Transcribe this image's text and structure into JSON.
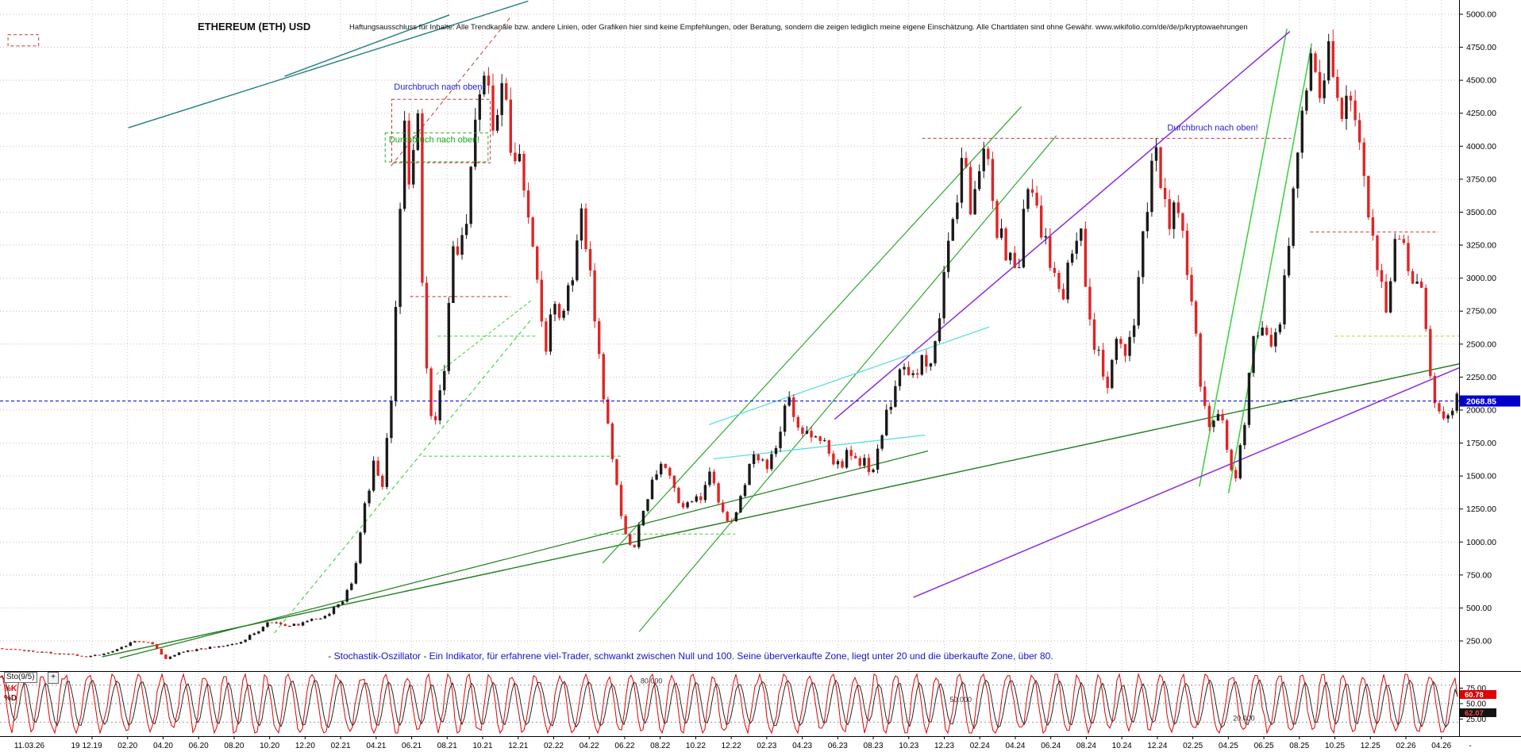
{
  "header": {
    "title": "ETHEREUM (ETH) USD",
    "disclaimer": "Haftungsausschluss für Inhalte: Alle Trendkanäle bzw. andere Linien, oder Grafiken hier sind keine Empfehlungen, oder Beratung, sondern die zeigen lediglich meine eigene Einschätzung. Alle Chartdaten sind ohne Gewähr.   www.wikifolio.com/de/de/p/kryptowaehrungen"
  },
  "colors": {
    "candle_up": "#1a1a1a",
    "candle_down": "#e02424",
    "grid_h": "#d9b6b6",
    "grid_v": "#c9c9c9",
    "price_line": "#0000dd",
    "price_badge_bg": "#0000cc",
    "price_badge_text": "#ffffff",
    "k_line": "#e00000",
    "d_line": "#262626",
    "k_badge_bg": "#e00000",
    "k_badge_text": "#ffffff",
    "d_badge_bg": "#141414",
    "d_badge_text": "#ff4444",
    "axis_text": "#000000",
    "level_line": "#999999",
    "border": "#000000"
  },
  "chart_data": {
    "type": "candlestick",
    "title": "ETHEREUM (ETH) USD",
    "ylim": [
      0,
      5100
    ],
    "current_price": "2068.85",
    "y_ticks": [
      "5000.00",
      "4750.00",
      "4500.00",
      "4250.00",
      "4000.00",
      "3750.00",
      "3500.00",
      "3250.00",
      "3000.00",
      "2750.00",
      "2500.00",
      "2250.00",
      "2000.00",
      "1750.00",
      "1500.00",
      "1250.00",
      "1000.00",
      "750.00",
      "500.00",
      "250.00"
    ],
    "x_ticks": [
      "11.03.26",
      "19",
      "12.19",
      "02.20",
      "04.20",
      "06.20",
      "08.20",
      "10.20",
      "12.20",
      "02.21",
      "04.21",
      "06.21",
      "08.21",
      "10.21",
      "12.21",
      "02.22",
      "04.22",
      "06.22",
      "08.22",
      "10.22",
      "12.22",
      "02.23",
      "04.23",
      "06.23",
      "08.23",
      "10.23",
      "12.23",
      "02.24",
      "04.24",
      "06.24",
      "08.24",
      "10.24",
      "12.24",
      "02.25",
      "04.25",
      "06.25",
      "08.25",
      "10.25",
      "12.25",
      "02.26",
      "04.26",
      "-"
    ],
    "price_anchors": [
      [
        0,
        195
      ],
      [
        0.02,
        175
      ],
      [
        0.045,
        150
      ],
      [
        0.06,
        132
      ],
      [
        0.075,
        158
      ],
      [
        0.093,
        252
      ],
      [
        0.104,
        232
      ],
      [
        0.113,
        112
      ],
      [
        0.125,
        168
      ],
      [
        0.15,
        208
      ],
      [
        0.165,
        242
      ],
      [
        0.185,
        392
      ],
      [
        0.2,
        368
      ],
      [
        0.21,
        392
      ],
      [
        0.225,
        455
      ],
      [
        0.235,
        565
      ],
      [
        0.242,
        735
      ],
      [
        0.25,
        1260
      ],
      [
        0.257,
        1630
      ],
      [
        0.262,
        1460
      ],
      [
        0.268,
        1980
      ],
      [
        0.273,
        3150
      ],
      [
        0.277,
        4180
      ],
      [
        0.281,
        3480
      ],
      [
        0.286,
        4330
      ],
      [
        0.291,
        2420
      ],
      [
        0.297,
        1870
      ],
      [
        0.304,
        2260
      ],
      [
        0.311,
        3180
      ],
      [
        0.319,
        3430
      ],
      [
        0.327,
        4280
      ],
      [
        0.333,
        4800
      ],
      [
        0.339,
        4120
      ],
      [
        0.344,
        4640
      ],
      [
        0.351,
        3920
      ],
      [
        0.359,
        3730
      ],
      [
        0.367,
        3080
      ],
      [
        0.373,
        2430
      ],
      [
        0.379,
        2890
      ],
      [
        0.384,
        2620
      ],
      [
        0.391,
        2940
      ],
      [
        0.397,
        3470
      ],
      [
        0.404,
        3230
      ],
      [
        0.411,
        2330
      ],
      [
        0.419,
        1740
      ],
      [
        0.427,
        1130
      ],
      [
        0.434,
        940
      ],
      [
        0.44,
        1180
      ],
      [
        0.447,
        1490
      ],
      [
        0.454,
        1660
      ],
      [
        0.461,
        1420
      ],
      [
        0.467,
        1290
      ],
      [
        0.474,
        1360
      ],
      [
        0.48,
        1270
      ],
      [
        0.486,
        1560
      ],
      [
        0.492,
        1290
      ],
      [
        0.498,
        1140
      ],
      [
        0.505,
        1240
      ],
      [
        0.512,
        1530
      ],
      [
        0.519,
        1660
      ],
      [
        0.527,
        1590
      ],
      [
        0.534,
        1860
      ],
      [
        0.541,
        2060
      ],
      [
        0.548,
        1890
      ],
      [
        0.555,
        1790
      ],
      [
        0.561,
        1870
      ],
      [
        0.568,
        1640
      ],
      [
        0.575,
        1570
      ],
      [
        0.582,
        1710
      ],
      [
        0.59,
        1620
      ],
      [
        0.597,
        1540
      ],
      [
        0.604,
        1810
      ],
      [
        0.611,
        2110
      ],
      [
        0.618,
        2260
      ],
      [
        0.625,
        2190
      ],
      [
        0.632,
        2410
      ],
      [
        0.639,
        2290
      ],
      [
        0.647,
        2960
      ],
      [
        0.654,
        3610
      ],
      [
        0.661,
        3890
      ],
      [
        0.667,
        3490
      ],
      [
        0.674,
        4060
      ],
      [
        0.68,
        3540
      ],
      [
        0.686,
        3290
      ],
      [
        0.692,
        3140
      ],
      [
        0.698,
        2990
      ],
      [
        0.704,
        3760
      ],
      [
        0.71,
        3490
      ],
      [
        0.716,
        3390
      ],
      [
        0.722,
        2990
      ],
      [
        0.728,
        2890
      ],
      [
        0.734,
        3260
      ],
      [
        0.741,
        3440
      ],
      [
        0.747,
        2640
      ],
      [
        0.753,
        2390
      ],
      [
        0.759,
        2240
      ],
      [
        0.765,
        2540
      ],
      [
        0.771,
        2390
      ],
      [
        0.777,
        2660
      ],
      [
        0.784,
        3360
      ],
      [
        0.79,
        4060
      ],
      [
        0.795,
        3840
      ],
      [
        0.8,
        3340
      ],
      [
        0.806,
        3640
      ],
      [
        0.812,
        3290
      ],
      [
        0.818,
        2690
      ],
      [
        0.824,
        2080
      ],
      [
        0.83,
        1890
      ],
      [
        0.836,
        2060
      ],
      [
        0.842,
        1590
      ],
      [
        0.847,
        1480
      ],
      [
        0.852,
        1810
      ],
      [
        0.858,
        2560
      ],
      [
        0.864,
        2710
      ],
      [
        0.87,
        2440
      ],
      [
        0.876,
        2560
      ],
      [
        0.882,
        3120
      ],
      [
        0.888,
        3710
      ],
      [
        0.894,
        4310
      ],
      [
        0.9,
        4760
      ],
      [
        0.905,
        4380
      ],
      [
        0.91,
        4850
      ],
      [
        0.915,
        4490
      ],
      [
        0.92,
        4290
      ],
      [
        0.925,
        4540
      ],
      [
        0.93,
        4140
      ],
      [
        0.935,
        3840
      ],
      [
        0.94,
        3390
      ],
      [
        0.945,
        3040
      ],
      [
        0.95,
        2840
      ],
      [
        0.955,
        3160
      ],
      [
        0.96,
        3310
      ],
      [
        0.965,
        2990
      ],
      [
        0.97,
        2890
      ],
      [
        0.975,
        2940
      ],
      [
        0.98,
        2230
      ],
      [
        0.985,
        1930
      ],
      [
        0.99,
        2010
      ],
      [
        1,
        2069
      ]
    ],
    "annotations": [
      {
        "text": "Durchbruch nach oben!",
        "x": 0.27,
        "price": 4430,
        "color": "#2424cc"
      },
      {
        "text": "Durchbruch nach oben!",
        "x": 0.2665,
        "price": 4030,
        "color": "#18a018"
      },
      {
        "text": "Durchbruch nach oben!",
        "x": 0.8,
        "price": 4120,
        "color": "#2424cc"
      }
    ],
    "boxes": [
      {
        "x1": 0.2685,
        "p1": 4355,
        "x2": 0.336,
        "p2": 3875,
        "color": "#d03434"
      },
      {
        "x1": 0.264,
        "p1": 4100,
        "x2": 0.3345,
        "p2": 3882,
        "color": "#2daa2d"
      },
      {
        "x1": 0.0055,
        "p1": 4845,
        "x2": 0.0265,
        "p2": 4760,
        "color": "#d03434"
      }
    ],
    "trendlines": [
      {
        "x1": 0.088,
        "p1": 4140,
        "x2": 0.362,
        "p2": 5100,
        "color": "#1e7d7d",
        "w": 1.4
      },
      {
        "x1": 0.195,
        "p1": 4530,
        "x2": 0.308,
        "p2": 4995,
        "color": "#1e7d7d",
        "w": 1.4
      },
      {
        "x1": 0.268,
        "p1": 3850,
        "x2": 0.35,
        "p2": 4980,
        "color": "#d03434",
        "w": 1,
        "dash": "5,4"
      },
      {
        "x1": 0.07,
        "p1": 130,
        "x2": 1,
        "p2": 2350,
        "color": "#1e7d1e",
        "w": 1.4
      },
      {
        "x1": 0.082,
        "p1": 120,
        "x2": 0.636,
        "p2": 1690,
        "color": "#1e7d1e",
        "w": 1.2
      },
      {
        "x1": 0.413,
        "p1": 840,
        "x2": 0.7,
        "p2": 4300,
        "color": "#2daa2d",
        "w": 1.2
      },
      {
        "x1": 0.438,
        "p1": 320,
        "x2": 0.724,
        "p2": 4080,
        "color": "#2daa2d",
        "w": 1.2
      },
      {
        "x1": 0.822,
        "p1": 1420,
        "x2": 0.882,
        "p2": 4890,
        "color": "#42d142",
        "w": 1.6
      },
      {
        "x1": 0.842,
        "p1": 1370,
        "x2": 0.899,
        "p2": 4780,
        "color": "#42d142",
        "w": 1.6
      },
      {
        "x1": 0.572,
        "p1": 1930,
        "x2": 0.884,
        "p2": 4870,
        "color": "#8a2be2",
        "w": 1.5
      },
      {
        "x1": 0.626,
        "p1": 580,
        "x2": 1,
        "p2": 2320,
        "color": "#8a2be2",
        "w": 1.5
      },
      {
        "x1": 0.486,
        "p1": 1890,
        "x2": 0.678,
        "p2": 2630,
        "color": "#5fdede",
        "w": 1.3
      },
      {
        "x1": 0.489,
        "p1": 1630,
        "x2": 0.634,
        "p2": 1810,
        "color": "#5fdede",
        "w": 1.3
      },
      {
        "x1": 0.188,
        "p1": 310,
        "x2": 0.365,
        "p2": 2700,
        "color": "#3ecf3e",
        "w": 1.1,
        "dash": "5,4"
      },
      {
        "x1": 0.299,
        "p1": 2270,
        "x2": 0.364,
        "p2": 2830,
        "color": "#3ecf3e",
        "w": 1,
        "dash": "4,3"
      },
      {
        "x1": 0.3,
        "p1": 2560,
        "x2": 0.367,
        "p2": 2560,
        "color": "#3ecf3e",
        "w": 1,
        "dash": "4,3"
      },
      {
        "x1": 0.29,
        "p1": 1650,
        "x2": 0.426,
        "p2": 1650,
        "color": "#3ecf3e",
        "w": 1,
        "dash": "4,3"
      },
      {
        "x1": 0.407,
        "p1": 1060,
        "x2": 0.504,
        "p2": 1060,
        "color": "#3ecf3e",
        "w": 1,
        "dash": "4,3"
      },
      {
        "x1": 0.281,
        "p1": 2860,
        "x2": 0.35,
        "p2": 2860,
        "color": "#d03434",
        "w": 1,
        "dash": "4,3"
      },
      {
        "x1": 0.632,
        "p1": 4060,
        "x2": 0.885,
        "p2": 4060,
        "color": "#d03434",
        "w": 1,
        "dash": "4,3"
      },
      {
        "x1": 0.898,
        "p1": 3350,
        "x2": 0.986,
        "p2": 3350,
        "color": "#d03434",
        "w": 1,
        "dash": "4,3"
      },
      {
        "x1": 0.915,
        "p1": 2560,
        "x2": 1,
        "p2": 2560,
        "color": "#c8c832",
        "w": 1,
        "dash": "4,3"
      }
    ],
    "oscillator": {
      "label": "Sto(9/5)",
      "plus_label": "+",
      "k_label": "%K",
      "d_label": "%D",
      "k_value": "60.78",
      "d_value": "62.07",
      "levels": [
        80,
        50,
        20
      ],
      "level_labels": [
        {
          "text": "80.000",
          "x": 0.439,
          "level": 80
        },
        {
          "text": "50.000",
          "x": 0.651,
          "level": 50
        },
        {
          "text": "20.000",
          "x": 0.845,
          "level": 20
        }
      ],
      "y_ticks": [
        {
          "label": "75.00",
          "v": 75
        },
        {
          "label": "50.00",
          "v": 50
        },
        {
          "label": "25.00",
          "v": 25
        }
      ],
      "description": "- Stochastik-Oszillator - Ein Indikator, für erfahrene viel-Trader, schwankt zwischen Null und 100. Seine überverkaufte Zone, liegt unter 20 und die überkaufte Zone, über 80."
    }
  }
}
